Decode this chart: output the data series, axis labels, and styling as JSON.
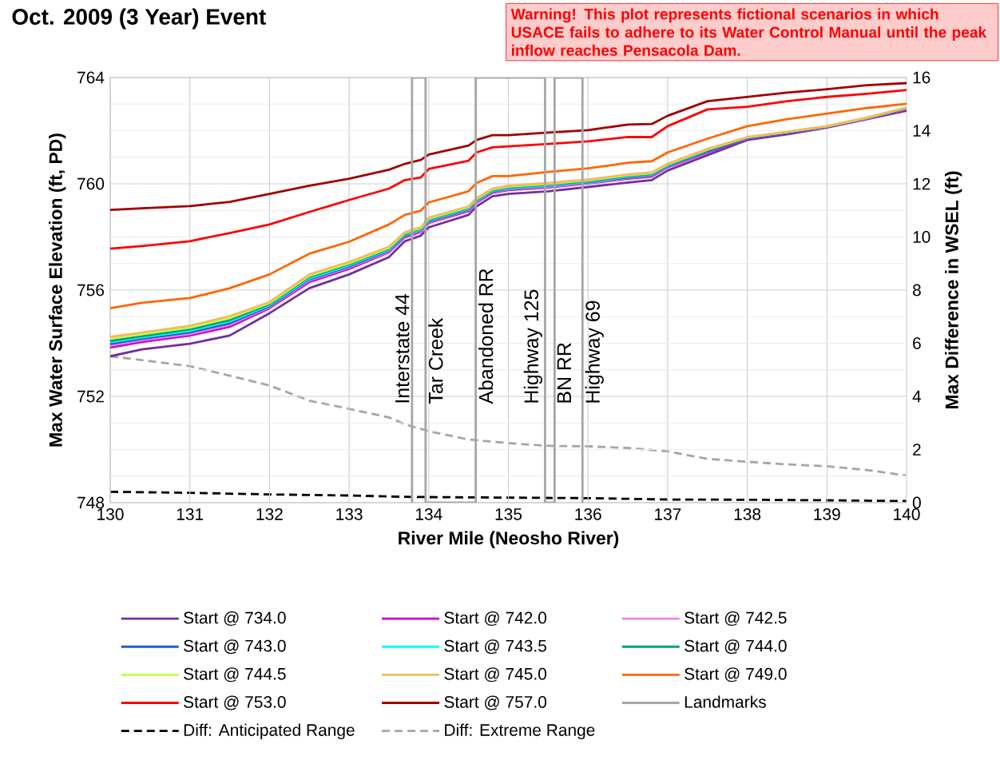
{
  "chart_data": {
    "type": "line",
    "title": "Oct. 2009 (3 Year) Event",
    "xlabel": "River Mile (Neosho River)",
    "ylabel": "Max Water Surface Elevation (ft, PD)",
    "y2label": "Max Difference in WSEL (ft)",
    "annotations": [
      "Warning! This plot represents fictional scenarios in which USACE fails to adhere to its Water Control Manual until the peak inflow reaches Pensacola Dam.",
      "Interstate 44",
      "Tar Creek",
      "Abandoned RR",
      "Highway 125",
      "BN RR",
      "Highway 69"
    ],
    "x": [
      130,
      130.4,
      131,
      131.5,
      132,
      132.5,
      133,
      133.5,
      133.7,
      133.9,
      134,
      134.5,
      134.6,
      134.8,
      135,
      135.5,
      136,
      136.5,
      136.8,
      137,
      137.5,
      138,
      138.5,
      139,
      139.5,
      140
    ],
    "series": [
      {
        "name": "Start @ 734.0",
        "color": "#7030a0",
        "values": [
          753.51,
          753.77,
          753.98,
          754.29,
          755.13,
          756.07,
          756.59,
          757.24,
          757.84,
          758.05,
          758.36,
          758.83,
          759.15,
          759.53,
          759.62,
          759.72,
          759.88,
          760.05,
          760.14,
          760.5,
          761.08,
          761.65,
          761.86,
          762.12,
          762.43,
          762.75
        ]
      },
      {
        "name": "Start @ 742.0",
        "color": "#cc00cc",
        "values": [
          753.84,
          754.05,
          754.29,
          754.62,
          755.32,
          756.3,
          756.8,
          757.42,
          757.99,
          758.19,
          758.53,
          758.97,
          759.29,
          759.66,
          759.76,
          759.86,
          760.01,
          760.19,
          760.27,
          760.62,
          761.18,
          761.7,
          761.91,
          762.14,
          762.46,
          762.8
        ]
      },
      {
        "name": "Start @ 742.5",
        "color": "#ee82ee",
        "values": [
          753.91,
          754.12,
          754.35,
          754.69,
          755.36,
          756.36,
          756.85,
          757.45,
          758.03,
          758.22,
          758.56,
          759.01,
          759.32,
          759.69,
          759.79,
          759.89,
          760.03,
          760.22,
          760.3,
          760.64,
          761.21,
          761.71,
          761.92,
          762.15,
          762.46,
          762.82
        ]
      },
      {
        "name": "Start @ 743.0",
        "color": "#1f5fcc",
        "values": [
          753.97,
          754.17,
          754.41,
          754.75,
          755.39,
          756.4,
          756.89,
          757.49,
          758.05,
          758.25,
          758.59,
          759.03,
          759.35,
          759.71,
          759.82,
          759.92,
          760.06,
          760.24,
          760.32,
          760.66,
          761.22,
          761.72,
          761.92,
          762.15,
          762.47,
          762.83
        ]
      },
      {
        "name": "Start @ 743.5",
        "color": "#00ffff",
        "values": [
          754.04,
          754.22,
          754.47,
          754.82,
          755.43,
          756.44,
          756.93,
          757.52,
          758.08,
          758.27,
          758.63,
          759.06,
          759.37,
          759.74,
          759.84,
          759.94,
          760.08,
          760.27,
          760.35,
          760.69,
          761.25,
          null,
          null,
          null,
          null,
          null
        ]
      },
      {
        "name": "Start @ 744.0",
        "color": "#00a07a",
        "values": [
          754.09,
          754.27,
          754.52,
          754.87,
          755.47,
          756.49,
          756.97,
          757.55,
          758.11,
          758.3,
          758.66,
          759.09,
          759.4,
          759.76,
          759.87,
          759.97,
          760.1,
          760.29,
          760.37,
          760.71,
          761.26,
          761.74,
          761.94,
          762.16,
          762.48,
          762.85
        ]
      },
      {
        "name": "Start @ 744.5",
        "color": "#c0ff40",
        "values": [
          754.17,
          754.34,
          754.59,
          754.95,
          755.51,
          756.54,
          757.01,
          757.59,
          758.15,
          758.33,
          758.69,
          759.12,
          759.43,
          759.79,
          759.9,
          760.0,
          760.13,
          760.32,
          760.4,
          760.73,
          761.29,
          761.75,
          761.95,
          762.16,
          762.48,
          762.86
        ]
      },
      {
        "name": "Start @ 745.0",
        "color": "#f4b860",
        "values": [
          754.24,
          754.4,
          754.66,
          755.02,
          755.55,
          756.59,
          757.06,
          757.63,
          758.18,
          758.36,
          758.73,
          759.15,
          759.46,
          759.82,
          759.93,
          760.03,
          760.16,
          760.35,
          760.43,
          760.76,
          761.31,
          761.76,
          761.96,
          762.17,
          762.49,
          762.87
        ]
      },
      {
        "name": "Start @ 749.0",
        "color": "#ff6600",
        "values": [
          755.32,
          755.52,
          755.7,
          756.07,
          756.59,
          757.37,
          757.82,
          758.47,
          758.83,
          758.99,
          759.3,
          759.72,
          760.03,
          760.29,
          760.29,
          760.45,
          760.58,
          760.79,
          760.85,
          761.18,
          761.7,
          762.17,
          762.43,
          762.64,
          762.85,
          763.01
        ]
      },
      {
        "name": "Start @ 753.0",
        "color": "#ff0000",
        "values": [
          757.56,
          757.66,
          757.84,
          758.15,
          758.47,
          758.94,
          759.39,
          759.82,
          760.14,
          760.24,
          760.56,
          760.87,
          761.18,
          761.37,
          761.41,
          761.5,
          761.6,
          761.76,
          761.76,
          762.17,
          762.8,
          762.9,
          763.11,
          763.27,
          763.39,
          763.53
        ]
      },
      {
        "name": "Start @ 757.0",
        "color": "#a00000",
        "values": [
          759.02,
          759.08,
          759.16,
          759.32,
          759.62,
          759.93,
          760.19,
          760.53,
          760.75,
          760.9,
          761.1,
          761.44,
          761.65,
          761.83,
          761.83,
          761.93,
          762.02,
          762.23,
          762.25,
          762.56,
          763.11,
          763.27,
          763.43,
          763.56,
          763.71,
          763.79
        ]
      },
      {
        "name": "Landmarks",
        "color": "#a6a6a6",
        "x": [
          133.79,
          133.79,
          133.96,
          133.96,
          134.59,
          134.59,
          135.46,
          135.46,
          135.58,
          135.58,
          135.93,
          135.93
        ],
        "values": [
          748,
          764,
          764,
          748,
          748,
          764,
          764,
          748,
          748,
          764,
          764,
          748
        ]
      },
      {
        "name": "Diff: Anticipated Range",
        "color": "#000000",
        "axis": "y2",
        "line_style": "dashed",
        "x": [
          130,
          131,
          132,
          133,
          133.7,
          134,
          135,
          136,
          137,
          138,
          139,
          140
        ],
        "values": [
          0.41,
          0.37,
          0.31,
          0.27,
          0.22,
          0.21,
          0.19,
          0.17,
          0.12,
          0.11,
          0.09,
          0.06
        ]
      },
      {
        "name": "Diff: Extreme Range",
        "color": "#a6a6a6",
        "axis": "y2",
        "line_style": "dashed",
        "x": [
          130,
          131,
          131.5,
          132,
          132.5,
          133,
          133.5,
          133.7,
          134,
          134.5,
          135,
          135.5,
          136,
          136.5,
          137,
          137.5,
          138,
          138.5,
          139,
          139.5,
          140
        ],
        "values": [
          5.51,
          5.14,
          4.78,
          4.41,
          3.84,
          3.53,
          3.21,
          2.95,
          2.69,
          2.38,
          2.24,
          2.14,
          2.12,
          2.06,
          1.93,
          1.65,
          1.54,
          1.44,
          1.37,
          1.23,
          1.02
        ]
      }
    ],
    "xlim": [
      130,
      140
    ],
    "xticks": [
      130,
      131,
      132,
      133,
      134,
      135,
      136,
      137,
      138,
      139,
      140
    ],
    "ylim": [
      748,
      764
    ],
    "yticks": [
      748,
      752,
      756,
      760,
      764
    ],
    "y2lim": [
      0,
      16
    ],
    "y2ticks": [
      0,
      2,
      4,
      6,
      8,
      10,
      12,
      14,
      16
    ],
    "grid": true,
    "legend": "bottom"
  }
}
